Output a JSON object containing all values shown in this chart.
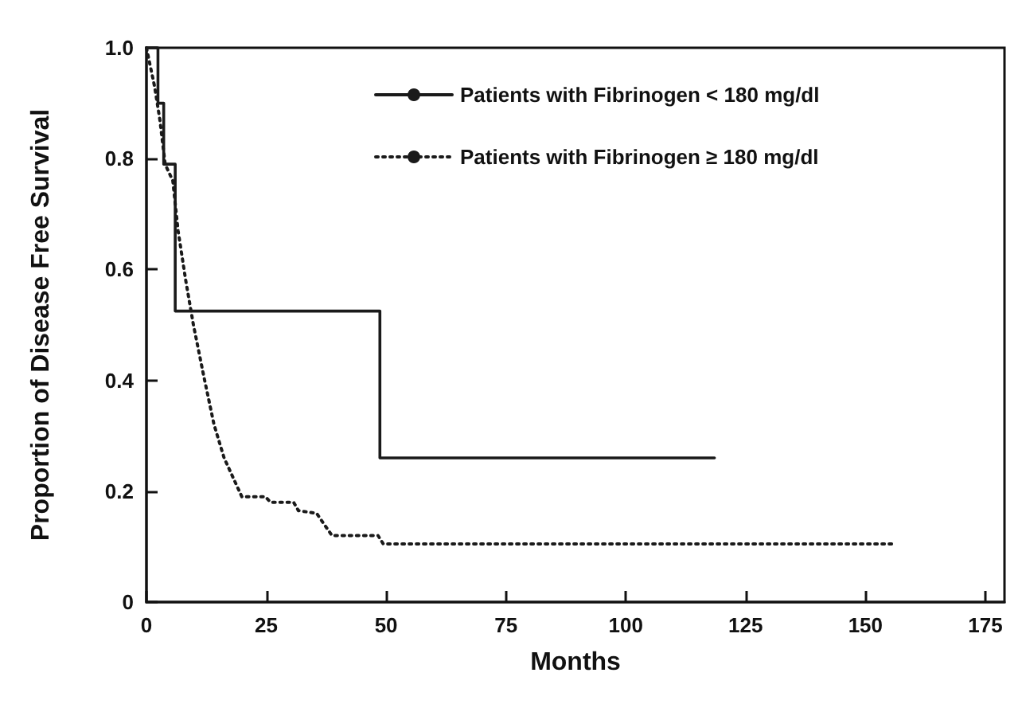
{
  "chart_data": {
    "type": "step",
    "xlabel": "Months",
    "ylabel": "Proportion of Disease Free Survival",
    "xlim": [
      0,
      179
    ],
    "ylim": [
      0,
      1
    ],
    "xticks": [
      0,
      25,
      50,
      75,
      100,
      125,
      150,
      175
    ],
    "yticks": [
      0,
      0.2,
      0.4,
      0.6,
      0.8,
      {
        "value": 1,
        "label": "1.0"
      }
    ],
    "legend": "top right",
    "marker": "none",
    "series": [
      {
        "name": "Patients with Fibrinogen < 180 mg/dl",
        "color": "#1a1a1a",
        "line_style": "solid",
        "x": [
          0,
          2.4,
          3.6,
          6,
          48.7,
          118.5
        ],
        "values": [
          1,
          0.9,
          0.79,
          0.525,
          0.26,
          0.26
        ]
      },
      {
        "name": "Patients with Fibrinogen ≥ 180 mg/dl",
        "type": "line",
        "color": "#1a1a1a",
        "line_style": "dotted",
        "x": [
          0,
          1.7,
          2.8,
          3.9,
          5.5,
          6.6,
          8.2,
          9.8,
          11.9,
          14.1,
          16.2,
          19.9,
          24.8,
          25.9,
          30.7,
          31.7,
          35.5,
          38.7,
          48.3,
          49.4,
          155.5
        ],
        "values": [
          1,
          0.93,
          0.87,
          0.79,
          0.76,
          0.67,
          0.58,
          0.5,
          0.41,
          0.32,
          0.26,
          0.19,
          0.19,
          0.18,
          0.18,
          0.165,
          0.16,
          0.12,
          0.12,
          0.105,
          0.105
        ]
      }
    ]
  }
}
